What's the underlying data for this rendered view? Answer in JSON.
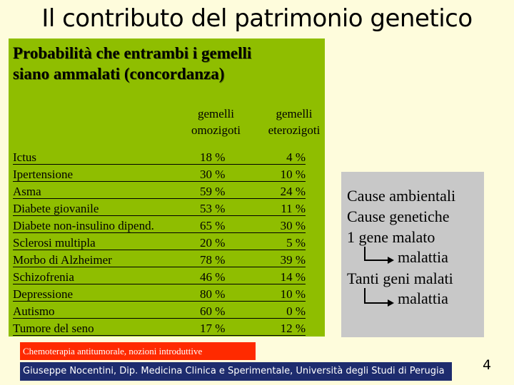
{
  "title": "Il contributo del patrimonio genetico",
  "subtitle_line1": "Probabilità che entrambi i gemelli",
  "subtitle_line2": "siano ammalati (concordanza)",
  "columns": {
    "homozygotic_line1": "gemelli",
    "homozygotic_line2": "omozigoti",
    "heterozygotic_line1": "gemelli",
    "heterozygotic_line2": "eterozigoti"
  },
  "rows": [
    {
      "name": "Ictus",
      "omo": "18 %",
      "etero": "4 %"
    },
    {
      "name": "Ipertensione",
      "omo": "30 %",
      "etero": "10 %"
    },
    {
      "name": "Asma",
      "omo": "59 %",
      "etero": "24 %"
    },
    {
      "name": "Diabete giovanile",
      "omo": "53 %",
      "etero": "11 %"
    },
    {
      "name": "Diabete non-insulino dipend.",
      "omo": "65 %",
      "etero": "30 %"
    },
    {
      "name": "Sclerosi multipla",
      "omo": "20 %",
      "etero": "5 %"
    },
    {
      "name": "Morbo di Alzheimer",
      "omo": "78 %",
      "etero": "39 %"
    },
    {
      "name": "Schizofrenia",
      "omo": "46 %",
      "etero": "14 %"
    },
    {
      "name": "Depressione",
      "omo": "80 %",
      "etero": "10 %"
    },
    {
      "name": "Autismo",
      "omo": "60 %",
      "etero": "0 %"
    },
    {
      "name": "Tumore del seno",
      "omo": "17 %",
      "etero": "12 %"
    }
  ],
  "causes": {
    "environmental": "Cause ambientali",
    "genetic": "Cause genetiche",
    "one_gene": "1 gene malato",
    "disease_1": "malattia",
    "many_genes": "Tanti geni malati",
    "disease_2": "malattia"
  },
  "footer": {
    "course": "Chemoterapia antitumorale, nozioni introduttive",
    "author": "Giuseppe Nocentini, Dip. Medicina Clinica e Sperimentale, Università degli Studi di Perugia",
    "page": "4"
  },
  "colors": {
    "background": "#fefcdc",
    "panel_green": "#8fbe00",
    "box_grey": "#c8c8c8",
    "footer_red": "#ff2a00",
    "footer_blue": "#1e2c6e"
  }
}
